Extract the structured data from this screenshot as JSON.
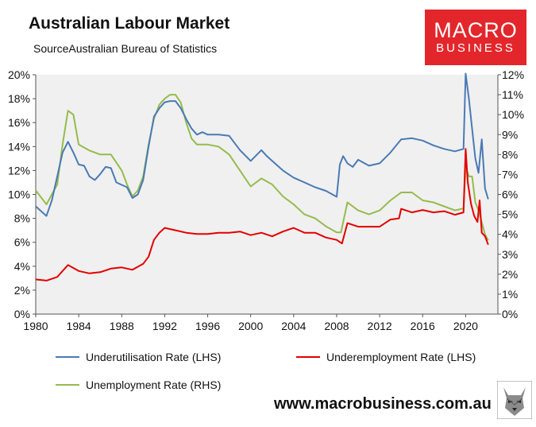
{
  "header": {
    "title": "Australian Labour Market",
    "source": "SourceAustralian Bureau of Statistics"
  },
  "logo": {
    "line1": "MACRO",
    "line2": "BUSINESS",
    "bg_color": "#e3262b"
  },
  "website": "www.macrobusiness.com.au",
  "legend": [
    {
      "name": "Underutilisation Rate (LHS)",
      "color": "#4a7ab5"
    },
    {
      "name": "Underemployment Rate (LHS)",
      "color": "#e50000"
    },
    {
      "name": "Unemployment Rate (RHS)",
      "color": "#96bb4d"
    }
  ],
  "chart_data": {
    "type": "line",
    "title": "Australian Labour Market",
    "x_ticks": [
      "1980",
      "1984",
      "1988",
      "1992",
      "1996",
      "2000",
      "2004",
      "2008",
      "2012",
      "2016",
      "2020"
    ],
    "xlim": [
      1980,
      2023
    ],
    "y_left_ticks": [
      "0%",
      "2%",
      "4%",
      "6%",
      "8%",
      "10%",
      "12%",
      "14%",
      "16%",
      "18%",
      "20%"
    ],
    "y_left_lim": [
      0,
      20
    ],
    "y_right_ticks": [
      "0%",
      "1%",
      "2%",
      "3%",
      "4%",
      "5%",
      "6%",
      "7%",
      "8%",
      "9%",
      "10%",
      "11%",
      "12%"
    ],
    "y_right_lim": [
      0,
      12
    ],
    "grid": false,
    "plot_background": "#f0f0f0",
    "series": [
      {
        "name": "Underutilisation Rate (LHS)",
        "axis": "left",
        "color": "#4a7ab5",
        "x": [
          1980,
          1981,
          1981.5,
          1982,
          1982.5,
          1983,
          1983.5,
          1984,
          1984.5,
          1985,
          1985.5,
          1986,
          1986.5,
          1987,
          1987.5,
          1988,
          1988.5,
          1989,
          1989.5,
          1990,
          1990.5,
          1991,
          1991.5,
          1992,
          1992.5,
          1993,
          1993.5,
          1994,
          1994.5,
          1995,
          1995.5,
          1996,
          1997,
          1998,
          1999,
          2000,
          2001,
          2001.5,
          2002,
          2003,
          2004,
          2005,
          2006,
          2007,
          2008,
          2008.3,
          2008.6,
          2009,
          2009.5,
          2010,
          2011,
          2012,
          2013,
          2014,
          2015,
          2016,
          2017,
          2018,
          2019,
          2019.8,
          2020.0,
          2020.3,
          2020.6,
          2020.9,
          2021.2,
          2021.5,
          2021.8,
          2022.1
        ],
        "values": [
          9.0,
          8.2,
          9.5,
          11.5,
          13.5,
          14.4,
          13.5,
          12.5,
          12.4,
          11.5,
          11.2,
          11.7,
          12.3,
          12.2,
          11.0,
          10.8,
          10.6,
          9.7,
          10.0,
          11.2,
          14.0,
          16.5,
          17.2,
          17.7,
          17.8,
          17.8,
          17.2,
          16.3,
          15.5,
          15.0,
          15.2,
          15.0,
          15.0,
          14.9,
          13.7,
          12.8,
          13.7,
          13.2,
          12.8,
          12.0,
          11.4,
          11.0,
          10.6,
          10.3,
          9.8,
          12.5,
          13.2,
          12.6,
          12.3,
          12.9,
          12.4,
          12.6,
          13.5,
          14.6,
          14.7,
          14.5,
          14.1,
          13.8,
          13.6,
          13.8,
          20.1,
          18.0,
          15.5,
          13.0,
          11.8,
          14.6,
          10.5,
          9.6
        ]
      },
      {
        "name": "Underemployment Rate (LHS)",
        "axis": "left",
        "color": "#e50000",
        "x": [
          1980,
          1981,
          1982,
          1982.5,
          1983,
          1984,
          1985,
          1986,
          1987,
          1988,
          1989,
          1990,
          1990.5,
          1991,
          1991.5,
          1992,
          1993,
          1994,
          1995,
          1996,
          1997,
          1998,
          1999,
          2000,
          2001,
          2002,
          2003,
          2004,
          2005,
          2006,
          2007,
          2008,
          2008.5,
          2009,
          2010,
          2011,
          2012,
          2013,
          2013.8,
          2014,
          2015,
          2016,
          2017,
          2018,
          2019,
          2019.8,
          2020.0,
          2020.2,
          2020.5,
          2020.8,
          2021.1,
          2021.3,
          2021.5,
          2021.8,
          2022.1
        ],
        "values": [
          2.9,
          2.8,
          3.1,
          3.6,
          4.1,
          3.6,
          3.4,
          3.5,
          3.8,
          3.9,
          3.7,
          4.2,
          4.8,
          6.2,
          6.8,
          7.2,
          7.0,
          6.8,
          6.7,
          6.7,
          6.8,
          6.8,
          6.9,
          6.6,
          6.8,
          6.5,
          6.9,
          7.2,
          6.8,
          6.8,
          6.4,
          6.2,
          5.9,
          7.6,
          7.3,
          7.3,
          7.3,
          7.9,
          8.0,
          8.8,
          8.5,
          8.7,
          8.5,
          8.6,
          8.3,
          8.5,
          13.8,
          11.0,
          9.2,
          8.2,
          7.7,
          9.5,
          6.8,
          6.5,
          5.8
        ]
      },
      {
        "name": "Unemployment Rate (RHS)",
        "axis": "right",
        "color": "#96bb4d",
        "x": [
          1980,
          1981,
          1982,
          1982.5,
          1983,
          1983.5,
          1984,
          1985,
          1986,
          1987,
          1988,
          1988.5,
          1989,
          1989.5,
          1990,
          1990.5,
          1991,
          1991.5,
          1992,
          1992.5,
          1993,
          1993.5,
          1994,
          1994.5,
          1995,
          1996,
          1997,
          1998,
          1999,
          2000,
          2001,
          2002,
          2003,
          2004,
          2005,
          2006,
          2007,
          2008,
          2008.4,
          2009,
          2010,
          2011,
          2012,
          2013,
          2014,
          2015,
          2016,
          2017,
          2018,
          2019,
          2019.8,
          2020.0,
          2020.3,
          2020.6,
          2020.9,
          2021.2,
          2021.5,
          2021.8,
          2022.1
        ],
        "values": [
          6.2,
          5.5,
          6.5,
          8.5,
          10.2,
          10.0,
          8.5,
          8.2,
          8.0,
          8.0,
          7.2,
          6.5,
          5.9,
          6.2,
          6.9,
          8.5,
          9.8,
          10.5,
          10.8,
          11.0,
          11.0,
          10.6,
          9.6,
          8.8,
          8.5,
          8.5,
          8.4,
          8.0,
          7.2,
          6.4,
          6.8,
          6.5,
          5.9,
          5.5,
          5.0,
          4.8,
          4.4,
          4.1,
          4.1,
          5.6,
          5.2,
          5.0,
          5.2,
          5.7,
          6.1,
          6.1,
          5.7,
          5.6,
          5.4,
          5.2,
          5.3,
          7.4,
          6.9,
          6.9,
          5.6,
          5.2,
          4.6,
          4.0,
          3.7
        ]
      }
    ]
  }
}
